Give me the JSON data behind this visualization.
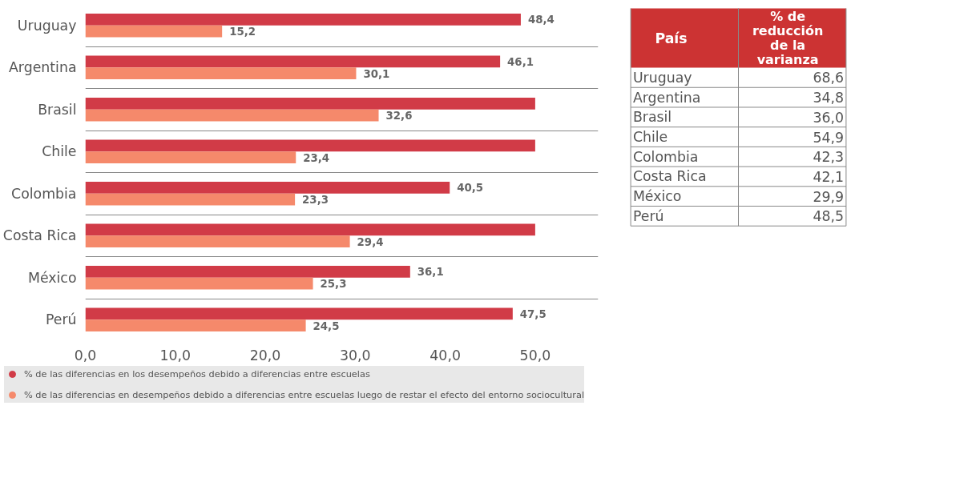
{
  "chart_data": [
    {
      "type": "bar",
      "orientation": "horizontal",
      "categories": [
        "Uruguay",
        "Argentina",
        "Brasil",
        "Chile",
        "Colombia",
        "Costa Rica",
        "México",
        "Perú"
      ],
      "series": [
        {
          "name": "% de las diferencias en los desempeños debido a diferencias entre escuelas",
          "color": "#d13b47",
          "values": [
            48.4,
            46.1,
            50.0,
            50.0,
            40.5,
            50.0,
            36.1,
            47.5
          ],
          "value_labels": [
            "48,4",
            "46,1",
            null,
            null,
            "40,5",
            null,
            "36,1",
            "47,5"
          ]
        },
        {
          "name": "% de las diferencias en desempeños debido a diferencias entre escuelas luego de restar el efecto del entorno sociocultural",
          "color": "#f5896b",
          "values": [
            15.2,
            30.1,
            32.6,
            23.4,
            23.3,
            29.4,
            25.3,
            24.5
          ],
          "value_labels": [
            "15,2",
            "30,1",
            "32,6",
            "23,4",
            "23,3",
            "29,4",
            "25,3",
            "24,5"
          ]
        }
      ],
      "xlim": [
        0,
        57
      ],
      "xticks": [
        {
          "value": 0,
          "label": "0,0"
        },
        {
          "value": 10,
          "label": "10,0"
        },
        {
          "value": 20,
          "label": "20,0"
        },
        {
          "value": 30,
          "label": "30,0"
        },
        {
          "value": 40,
          "label": "40,0"
        },
        {
          "value": 50,
          "label": "50,0"
        }
      ],
      "grid": "y",
      "legend": "bottom"
    },
    {
      "type": "other",
      "categories": [
        "Uruguay",
        "Argentina",
        "Brasil",
        "Chile",
        "Colombia",
        "Costa Rica",
        "México",
        "Perú"
      ],
      "value_labels": [
        "68,6",
        "34,8",
        "36,0",
        "54,9",
        "42,3",
        "42,1",
        "29,9",
        "48,5"
      ],
      "annotations": [
        "País",
        "% de\nreducción\nde la\nvarianza"
      ],
      "color": "#cc3333"
    }
  ]
}
